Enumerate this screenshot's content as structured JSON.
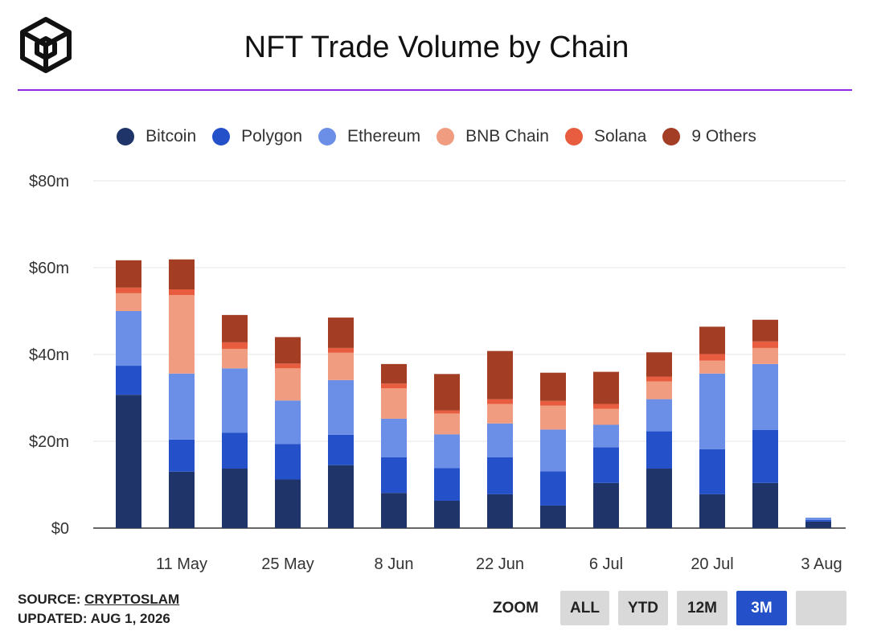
{
  "header": {
    "title": "NFT Trade Volume by Chain",
    "logo_icon": "cube-logo-icon"
  },
  "footer": {
    "source_label": "SOURCE:",
    "source_link": "CRYPTOSLAM",
    "updated": "UPDATED: AUG 1, 2026"
  },
  "zoom": {
    "label": "ZOOM",
    "buttons": [
      "ALL",
      "YTD",
      "12M",
      "3M",
      ""
    ],
    "active": "3M"
  },
  "colors": {
    "accent_rule": "#8a2be2",
    "active_button": "#2450c9"
  },
  "chart_data": {
    "type": "bar",
    "stacked": true,
    "title": "NFT Trade Volume by Chain",
    "y_tick_labels": [
      "$0",
      "$20m",
      "$40m",
      "$60m",
      "$80m"
    ],
    "ylim": [
      0,
      80
    ],
    "y_unit": "millions USD",
    "x_tick_labels": [
      "11 May",
      "25 May",
      "8 Jun",
      "22 Jun",
      "6 Jul",
      "20 Jul",
      "3 Aug"
    ],
    "grid": true,
    "legend_position": "top-center",
    "series": [
      {
        "name": "Bitcoin",
        "color": "#1f3468",
        "values": [
          30.7,
          13.0,
          13.7,
          11.2,
          14.5,
          8.1,
          6.3,
          7.8,
          5.2,
          10.4,
          13.7,
          7.8,
          10.4,
          1.5
        ]
      },
      {
        "name": "Polygon",
        "color": "#2450c9",
        "values": [
          6.7,
          7.4,
          8.3,
          8.2,
          7.0,
          8.2,
          7.5,
          8.5,
          7.9,
          8.2,
          8.6,
          10.4,
          12.2,
          0.4
        ]
      },
      {
        "name": "Ethereum",
        "color": "#6b8fe6",
        "values": [
          12.6,
          15.2,
          14.8,
          10.0,
          12.6,
          8.9,
          7.8,
          7.8,
          9.6,
          5.2,
          7.4,
          17.4,
          15.2,
          0.5
        ]
      },
      {
        "name": "BNB Chain",
        "color": "#f09c80",
        "values": [
          4.1,
          18.1,
          4.5,
          7.4,
          6.3,
          7.0,
          4.8,
          4.5,
          5.5,
          3.7,
          4.1,
          3.0,
          3.7,
          0
        ]
      },
      {
        "name": "Solana",
        "color": "#e85d3f",
        "values": [
          1.3,
          1.3,
          1.5,
          1.1,
          1.1,
          1.1,
          0.7,
          1.1,
          1.1,
          1.1,
          1.1,
          1.5,
          1.5,
          0
        ]
      },
      {
        "name": "9 Others",
        "color": "#a33d24",
        "values": [
          6.3,
          6.9,
          6.3,
          6.1,
          7.0,
          4.5,
          8.4,
          11.1,
          6.5,
          7.4,
          5.6,
          6.3,
          5.0,
          0
        ]
      }
    ]
  }
}
